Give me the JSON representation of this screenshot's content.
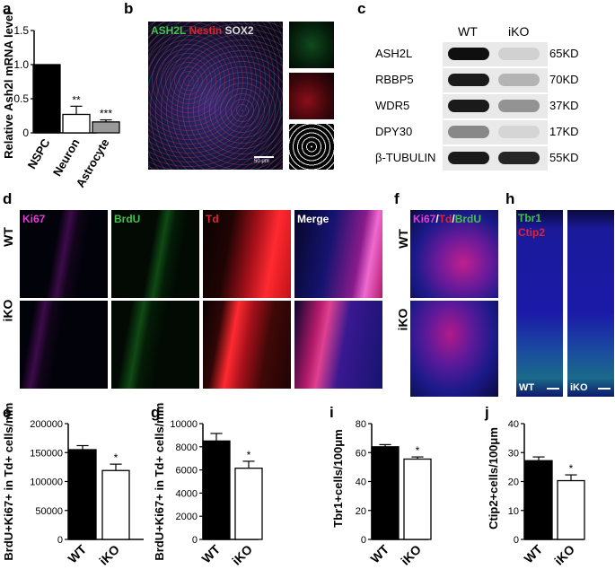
{
  "panels": {
    "a": {
      "label": "a"
    },
    "b": {
      "label": "b",
      "ch1": "ASH2L",
      "ch2": "Nestin",
      "ch3": "SOX2",
      "scale": "50 μm"
    },
    "c": {
      "label": "c",
      "lanes": [
        "WT",
        "iKO"
      ],
      "rows": [
        {
          "name": "ASH2L",
          "kd": "65KD",
          "wt": 1.0,
          "iko": 0.12
        },
        {
          "name": "RBBP5",
          "kd": "70KD",
          "wt": 0.95,
          "iko": 0.25
        },
        {
          "name": "WDR5",
          "kd": "37KD",
          "wt": 0.95,
          "iko": 0.4
        },
        {
          "name": "DPY30",
          "kd": "17KD",
          "wt": 0.45,
          "iko": 0.1
        },
        {
          "name": "β-TUBULIN",
          "kd": "55KD",
          "wt": 0.95,
          "iko": 0.9
        }
      ]
    },
    "d": {
      "label": "d",
      "cols": [
        "Ki67",
        "BrdU",
        "Td",
        "Merge"
      ],
      "rows": [
        "WT",
        "iKO"
      ]
    },
    "f": {
      "label": "f",
      "ch1": "Ki67",
      "ch2": "Td",
      "ch3": "BrdU",
      "rows": [
        "WT",
        "iKO"
      ]
    },
    "h": {
      "label": "h",
      "ch1": "Tbr1",
      "ch2": "Ctip2",
      "wt": "WT",
      "iko": "iKO",
      "scale": "50 μm"
    },
    "e": {
      "label": "e"
    },
    "g": {
      "label": "g"
    },
    "i": {
      "label": "i"
    },
    "j": {
      "label": "j"
    }
  },
  "chart_data": [
    {
      "id": "a",
      "type": "bar",
      "ylabel": "Relative Ash2l mRNA level",
      "categories": [
        "NSPC",
        "Neuron",
        "Astrocyte"
      ],
      "values": [
        1.0,
        0.27,
        0.16
      ],
      "errors": [
        0,
        0.12,
        0.03
      ],
      "sig": [
        "",
        "**",
        "***"
      ],
      "ylim": [
        0,
        1.5
      ],
      "yticks": [
        0,
        0.5,
        1.0,
        1.5
      ],
      "ytick_labels": [
        "0",
        "0.5",
        "1.0",
        "1.5"
      ],
      "fills": [
        "#000000",
        "#ffffff",
        "#999999"
      ]
    },
    {
      "id": "e",
      "type": "bar",
      "ylabel": "BrdU+Ki67+ in Td+ cells/mm3",
      "categories": [
        "WT",
        "iKO"
      ],
      "values": [
        155000,
        119000
      ],
      "errors": [
        7000,
        11000
      ],
      "sig": [
        "",
        "*"
      ],
      "ylim": [
        0,
        200000
      ],
      "yticks": [
        0,
        50000,
        100000,
        150000,
        200000
      ],
      "ytick_labels": [
        "0",
        "50000",
        "100000",
        "150000",
        "200000"
      ],
      "fills": [
        "#000000",
        "#ffffff"
      ]
    },
    {
      "id": "g",
      "type": "bar",
      "ylabel": "BrdU+Ki67+ in Td+ cells/mm3",
      "categories": [
        "WT",
        "iKO"
      ],
      "values": [
        8500,
        6150
      ],
      "errors": [
        650,
        600
      ],
      "sig": [
        "",
        "*"
      ],
      "ylim": [
        0,
        10000
      ],
      "yticks": [
        0,
        2000,
        4000,
        6000,
        8000,
        10000
      ],
      "ytick_labels": [
        "0",
        "2000",
        "4000",
        "6000",
        "8000",
        "10000"
      ],
      "fills": [
        "#000000",
        "#ffffff"
      ]
    },
    {
      "id": "i",
      "type": "bar",
      "ylabel": "Tbr1+cells/100μm",
      "categories": [
        "WT",
        "iKO"
      ],
      "values": [
        64,
        55.5
      ],
      "errors": [
        1.5,
        1.5
      ],
      "sig": [
        "",
        "*"
      ],
      "ylim": [
        0,
        80
      ],
      "yticks": [
        0,
        20,
        40,
        60,
        80
      ],
      "ytick_labels": [
        "0",
        "20",
        "40",
        "60",
        "80"
      ],
      "fills": [
        "#000000",
        "#ffffff"
      ]
    },
    {
      "id": "j",
      "type": "bar",
      "ylabel": "Ctip2+cells/100μm",
      "categories": [
        "WT",
        "iKO"
      ],
      "values": [
        27.2,
        20.3
      ],
      "errors": [
        1.3,
        2.0
      ],
      "sig": [
        "",
        "*"
      ],
      "ylim": [
        0,
        40
      ],
      "yticks": [
        0,
        10,
        20,
        30,
        40
      ],
      "ytick_labels": [
        "0",
        "10",
        "20",
        "30",
        "40"
      ],
      "fills": [
        "#000000",
        "#ffffff"
      ]
    }
  ]
}
